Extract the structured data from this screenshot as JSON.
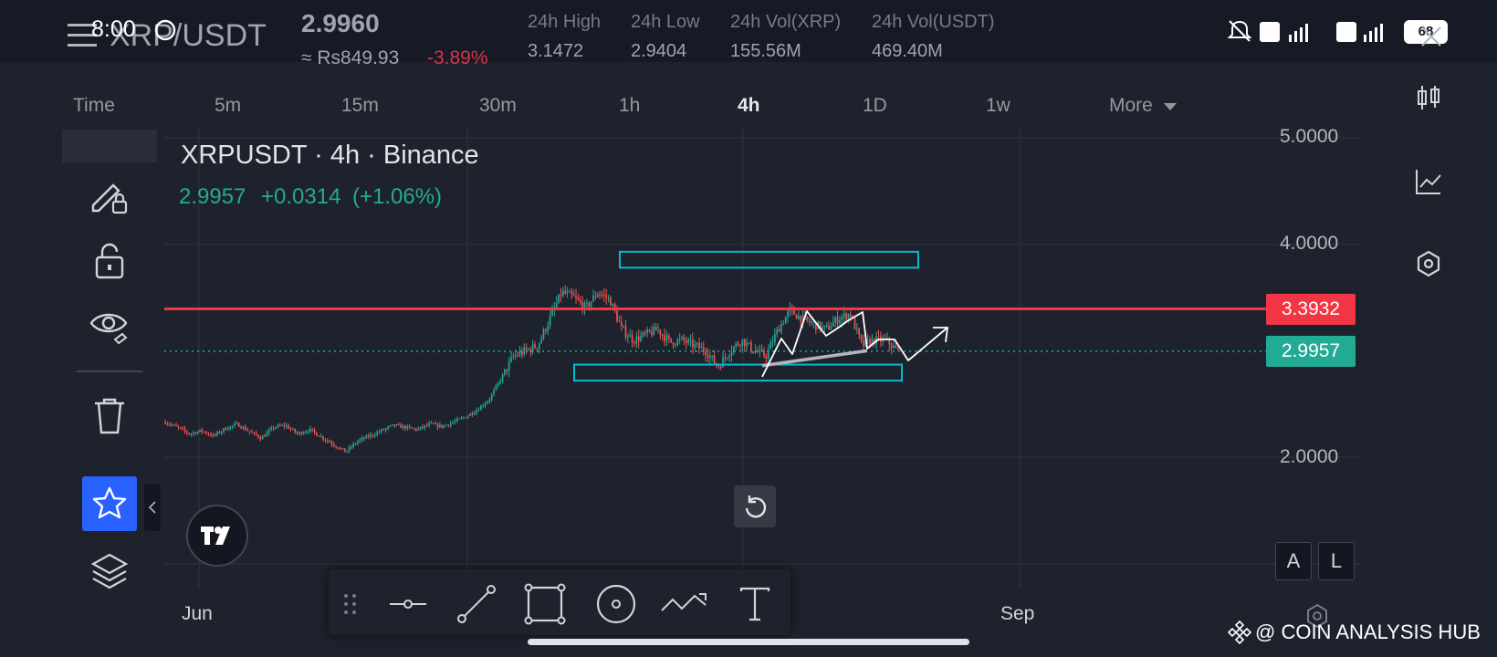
{
  "status": {
    "time": "8:00",
    "battery": "68"
  },
  "header": {
    "menu_icon": "hamburger-icon",
    "pair": "XRP/USDT",
    "price": "2.9960",
    "fiat_price": "≈ Rs849.93",
    "change": "-3.89%",
    "stats": [
      {
        "label": "24h High",
        "value": "3.1472"
      },
      {
        "label": "24h Low",
        "value": "2.9404"
      },
      {
        "label": "24h Vol(XRP)",
        "value": "155.56M"
      },
      {
        "label": "24h Vol(USDT)",
        "value": "469.40M"
      }
    ]
  },
  "timeframes": [
    "Time",
    "5m",
    "15m",
    "30m",
    "1h",
    "4h",
    "1D",
    "1w",
    "More"
  ],
  "active_timeframe": "4h",
  "legend": {
    "title": "XRPUSDT · 4h · Binance",
    "price": "2.9957",
    "change": "+0.0314",
    "change_pct": "(+1.06%)"
  },
  "price_axis": {
    "labels": [
      "5.0000",
      "4.0000",
      "2.0000"
    ],
    "red_line_label": "3.3932",
    "current_label": "2.9957"
  },
  "time_axis": {
    "labels": [
      "Jun",
      "Sep"
    ]
  },
  "scale_buttons": {
    "a": "A",
    "l": "L"
  },
  "watermark": "@ COIN ANALYSIS HUB",
  "colors": {
    "up": "#26a69a",
    "down": "#ef5350",
    "accent_red": "#f23645",
    "accent_green": "#22ab94",
    "box": "#00bcd4",
    "favorite": "#2962ff"
  },
  "chart_data": {
    "type": "candlestick",
    "symbol": "XRPUSDT",
    "interval": "4h",
    "exchange": "Binance",
    "ylim": [
      1.5,
      5.0
    ],
    "y_ticks": [
      5.0,
      4.0,
      2.0
    ],
    "x_ticks": [
      "Jun",
      "Sep"
    ],
    "close_path": [
      2.33,
      2.28,
      2.22,
      2.25,
      2.2,
      2.27,
      2.31,
      2.24,
      2.18,
      2.28,
      2.3,
      2.22,
      2.26,
      2.19,
      2.12,
      2.05,
      2.15,
      2.2,
      2.25,
      2.3,
      2.28,
      2.26,
      2.31,
      2.29,
      2.33,
      2.38,
      2.45,
      2.55,
      2.75,
      2.95,
      3.0,
      3.05,
      3.3,
      3.55,
      3.5,
      3.4,
      3.55,
      3.48,
      3.2,
      3.1,
      3.15,
      3.2,
      3.08,
      3.1,
      3.05,
      3.0,
      2.85,
      3.0,
      3.1,
      3.0,
      2.95,
      3.2,
      3.38,
      3.3,
      3.25,
      3.2,
      3.3,
      3.35,
      3.05,
      3.1,
      3.1,
      2.99
    ],
    "horizontal_lines": [
      {
        "price": 3.3932,
        "color": "#f23645"
      },
      {
        "price": 2.9957,
        "style": "dotted",
        "color": "#22ab94"
      }
    ],
    "zones": [
      {
        "from": 3.78,
        "to": 3.93
      },
      {
        "from": 2.72,
        "to": 2.87
      }
    ],
    "trendline": {
      "from": 2.86,
      "to": 3.0
    }
  }
}
